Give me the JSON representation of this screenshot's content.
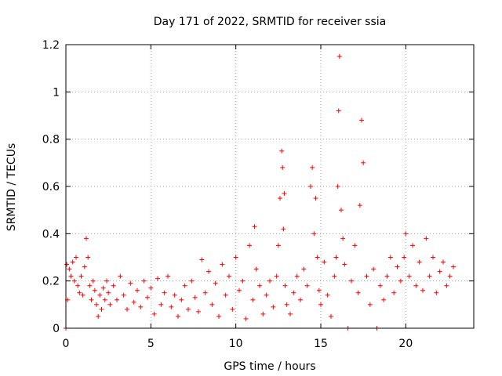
{
  "chart_data": {
    "type": "scatter",
    "title": "Day 171 of 2022, SRMTID for receiver ssia",
    "xlabel": "GPS time / hours",
    "ylabel": "SRMTID / TECUs",
    "xlim": [
      0,
      24
    ],
    "ylim": [
      0,
      1.2
    ],
    "x_ticks": [
      0,
      5,
      10,
      15,
      20
    ],
    "x_tick_labels": [
      "0",
      "5",
      "10",
      "15",
      "20"
    ],
    "y_ticks": [
      0,
      0.2,
      0.4,
      0.6,
      0.8,
      1,
      1.2
    ],
    "y_tick_labels": [
      "0",
      "0.2",
      "0.4",
      "0.6",
      "0.8",
      "1",
      "1.2"
    ],
    "grid": true,
    "marker": "+",
    "color": "#ff0000",
    "series": [
      {
        "name": "SRMTID",
        "x": [
          0.0,
          0.05,
          0.1,
          0.2,
          0.3,
          0.4,
          0.5,
          0.6,
          0.7,
          0.8,
          0.9,
          1.0,
          1.1,
          1.2,
          1.3,
          1.4,
          1.5,
          1.6,
          1.7,
          1.8,
          1.9,
          2.0,
          2.1,
          2.2,
          2.3,
          2.4,
          2.5,
          2.6,
          2.8,
          3.0,
          3.2,
          3.4,
          3.6,
          3.8,
          4.0,
          4.2,
          4.4,
          4.6,
          4.8,
          5.0,
          5.2,
          5.4,
          5.6,
          5.8,
          6.0,
          6.2,
          6.4,
          6.6,
          6.8,
          7.0,
          7.2,
          7.4,
          7.6,
          7.8,
          8.0,
          8.2,
          8.4,
          8.6,
          8.8,
          9.0,
          9.2,
          9.4,
          9.6,
          9.8,
          10.0,
          10.2,
          10.4,
          10.6,
          10.8,
          11.0,
          11.1,
          11.2,
          11.4,
          11.6,
          11.8,
          12.0,
          12.2,
          12.4,
          12.5,
          12.6,
          12.7,
          12.75,
          12.8,
          12.85,
          12.9,
          13.0,
          13.2,
          13.4,
          13.6,
          13.8,
          14.0,
          14.2,
          14.4,
          14.5,
          14.6,
          14.7,
          14.8,
          14.9,
          15.0,
          15.2,
          15.4,
          15.6,
          15.8,
          15.9,
          16.0,
          16.05,
          16.1,
          16.2,
          16.3,
          16.4,
          16.6,
          16.8,
          17.0,
          17.2,
          17.3,
          17.4,
          17.5,
          17.7,
          17.9,
          18.1,
          18.3,
          18.5,
          18.7,
          18.9,
          19.1,
          19.3,
          19.5,
          19.7,
          19.9,
          20.0,
          20.2,
          20.4,
          20.6,
          20.8,
          21.0,
          21.2,
          21.4,
          21.6,
          21.8,
          22.0,
          22.2,
          22.4,
          22.6,
          22.8
        ],
        "y": [
          0.0,
          0.27,
          0.12,
          0.25,
          0.22,
          0.28,
          0.2,
          0.3,
          0.18,
          0.15,
          0.22,
          0.14,
          0.26,
          0.38,
          0.3,
          0.18,
          0.12,
          0.2,
          0.16,
          0.1,
          0.05,
          0.14,
          0.08,
          0.17,
          0.12,
          0.2,
          0.15,
          0.1,
          0.18,
          0.12,
          0.22,
          0.14,
          0.08,
          0.19,
          0.11,
          0.16,
          0.09,
          0.2,
          0.13,
          0.17,
          0.06,
          0.21,
          0.1,
          0.15,
          0.22,
          0.09,
          0.14,
          0.05,
          0.12,
          0.18,
          0.08,
          0.2,
          0.13,
          0.07,
          0.29,
          0.15,
          0.24,
          0.1,
          0.19,
          0.05,
          0.27,
          0.14,
          0.22,
          0.08,
          0.3,
          0.16,
          0.2,
          0.04,
          0.35,
          0.12,
          0.43,
          0.25,
          0.18,
          0.06,
          0.14,
          0.2,
          0.09,
          0.22,
          0.35,
          0.55,
          0.75,
          0.68,
          0.42,
          0.57,
          0.18,
          0.1,
          0.06,
          0.15,
          0.22,
          0.12,
          0.25,
          0.18,
          0.6,
          0.68,
          0.4,
          0.55,
          0.3,
          0.16,
          0.1,
          0.28,
          0.14,
          0.05,
          0.22,
          0.3,
          0.6,
          0.92,
          1.15,
          0.5,
          0.38,
          0.27,
          0.0,
          0.2,
          0.35,
          0.15,
          0.52,
          0.88,
          0.7,
          0.22,
          0.1,
          0.25,
          0.0,
          0.18,
          0.12,
          0.22,
          0.3,
          0.15,
          0.26,
          0.2,
          0.3,
          0.4,
          0.22,
          0.35,
          0.18,
          0.28,
          0.16,
          0.38,
          0.22,
          0.3,
          0.15,
          0.24,
          0.28,
          0.18,
          0.22,
          0.26
        ]
      }
    ]
  }
}
